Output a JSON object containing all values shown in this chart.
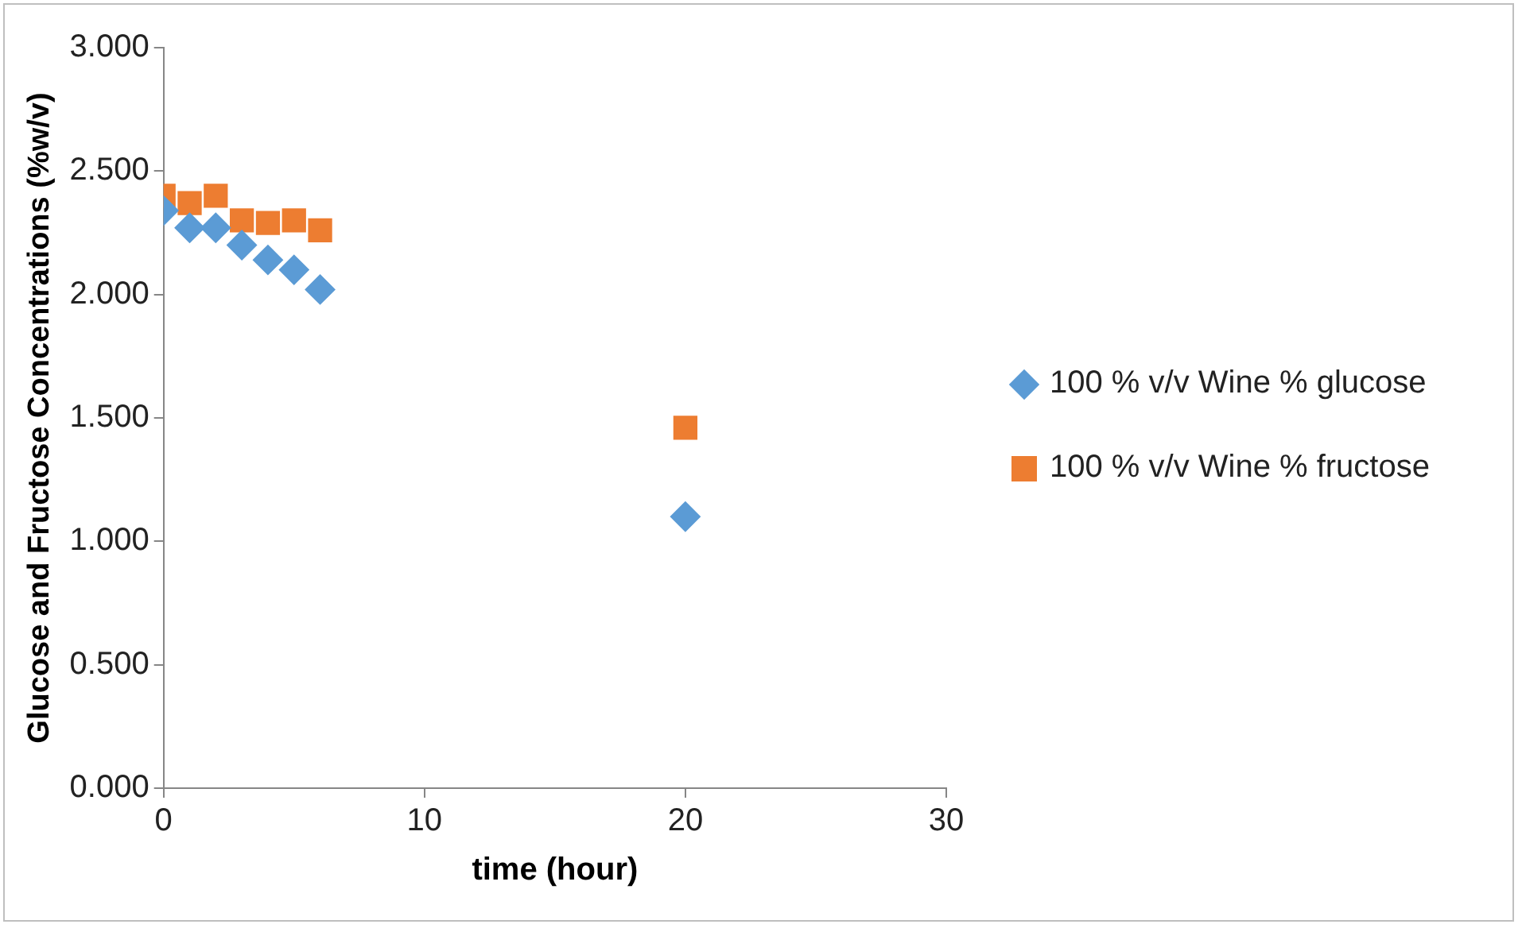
{
  "chart_data": {
    "type": "scatter",
    "xlabel": "time (hour)",
    "ylabel": "Glucose and Fructose Concentrations (%w/v)",
    "xlim": [
      0,
      30
    ],
    "xticks": [
      0,
      10,
      20,
      30
    ],
    "ylim": [
      0,
      3
    ],
    "yticks": [
      {
        "value": 0,
        "label": "0.000"
      },
      {
        "value": 0.5,
        "label": "0.500"
      },
      {
        "value": 1,
        "label": "1.000"
      },
      {
        "value": 1.5,
        "label": "1.500"
      },
      {
        "value": 2,
        "label": "2.000"
      },
      {
        "value": 2.5,
        "label": "2.500"
      },
      {
        "value": 3,
        "label": "3.000"
      }
    ],
    "grid": false,
    "legend": "right",
    "series": [
      {
        "name": "100 % v/v Wine % glucose",
        "color": "#5b9bd5",
        "marker": "diamond",
        "x": [
          0,
          1,
          2,
          3,
          4,
          5,
          6,
          20
        ],
        "values": [
          2.34,
          2.27,
          2.27,
          2.2,
          2.14,
          2.1,
          2.02,
          1.1
        ]
      },
      {
        "name": "100 % v/v Wine % fructose",
        "color": "#ed7d31",
        "marker": "square",
        "x": [
          0,
          1,
          2,
          3,
          4,
          5,
          6,
          20
        ],
        "values": [
          2.4,
          2.37,
          2.4,
          2.3,
          2.29,
          2.3,
          2.26,
          1.46
        ]
      }
    ]
  }
}
